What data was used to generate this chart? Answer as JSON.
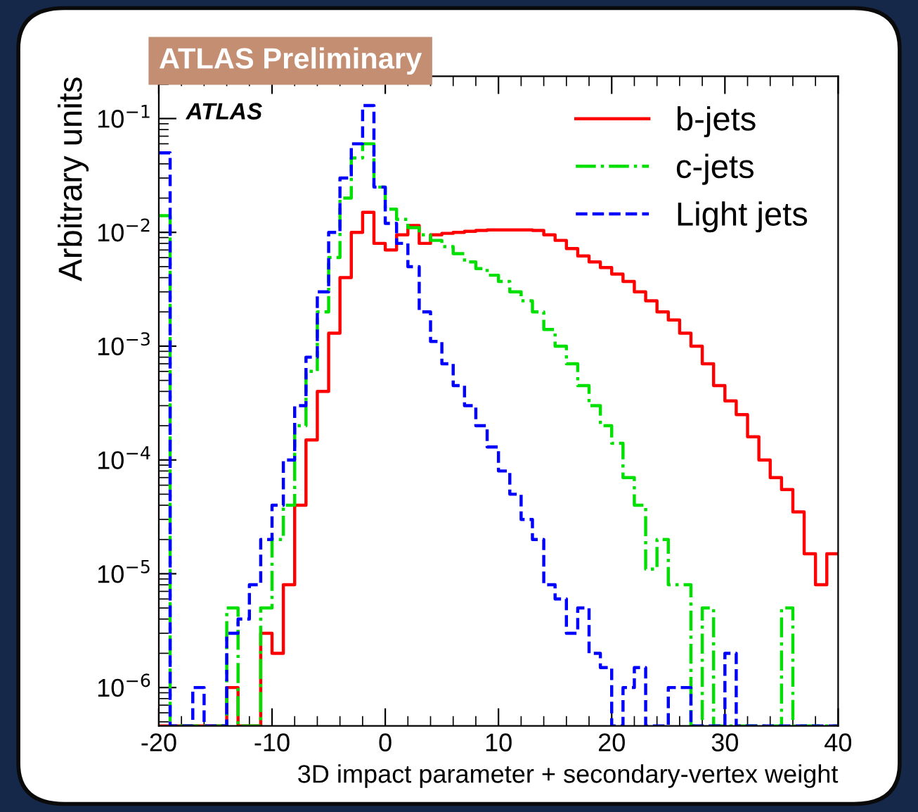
{
  "chart_data": {
    "type": "histogram",
    "title": "ATLAS Preliminary",
    "xlabel": "3D impact parameter + secondary-vertex weight",
    "ylabel": "Arbitrary units",
    "annotations": [
      "ATLAS"
    ],
    "bins": [
      -20,
      -19,
      -18,
      -17,
      -16,
      -15,
      -14,
      -13,
      -12,
      -11,
      -10,
      -9,
      -8,
      -7,
      -6,
      -5,
      -4,
      -3,
      -2,
      -1,
      0,
      1,
      2,
      3,
      4,
      5,
      6,
      7,
      8,
      9,
      10,
      11,
      12,
      13,
      14,
      15,
      16,
      17,
      18,
      19,
      20,
      21,
      22,
      23,
      24,
      25,
      26,
      27,
      28,
      29,
      30,
      31,
      32,
      33,
      34,
      35,
      36,
      37,
      38,
      39,
      40
    ],
    "series": [
      {
        "name": "b-jets",
        "color": "#ff0000",
        "line_style": "solid",
        "values": [
          null,
          null,
          null,
          null,
          null,
          null,
          1e-06,
          null,
          null,
          3e-06,
          2e-06,
          8e-06,
          4e-05,
          0.00015,
          0.0004,
          0.0013,
          0.004,
          0.01,
          0.015,
          0.008,
          0.007,
          0.0095,
          0.0115,
          0.008,
          0.0095,
          0.0098,
          0.01,
          0.0102,
          0.0104,
          0.0105,
          0.0105,
          0.0105,
          0.0105,
          0.0104,
          0.0095,
          0.0085,
          0.0072,
          0.0062,
          0.0055,
          0.0049,
          0.0043,
          0.0037,
          0.003,
          0.0025,
          0.002,
          0.0017,
          0.0013,
          0.001,
          0.0007,
          0.00045,
          0.00033,
          0.00025,
          0.00016,
          0.0001,
          7e-05,
          5.5e-05,
          3.5e-05,
          1.5e-05,
          8e-06,
          1.5e-05
        ]
      },
      {
        "name": "c-jets",
        "color": "#00e000",
        "line_style": "dashdot",
        "values": [
          0.014,
          null,
          null,
          null,
          null,
          null,
          5e-06,
          null,
          null,
          5e-06,
          2e-05,
          4e-05,
          0.0002,
          0.0006,
          0.002,
          0.006,
          0.02,
          0.045,
          0.06,
          0.025,
          0.016,
          0.013,
          0.011,
          0.0095,
          0.0085,
          0.0075,
          0.0065,
          0.0055,
          0.0048,
          0.0042,
          0.0037,
          0.003,
          0.0025,
          0.002,
          0.0014,
          0.001,
          0.0007,
          0.00045,
          0.0003,
          0.0002,
          0.00014,
          7e-05,
          4e-05,
          1.1e-05,
          2e-05,
          8e-06,
          8e-06,
          null,
          5e-06,
          null,
          null,
          null,
          null,
          null,
          null,
          5e-06,
          null,
          null,
          null,
          null
        ]
      },
      {
        "name": "Light jets",
        "color": "#0000ff",
        "line_style": "dashed",
        "values": [
          0.05,
          null,
          null,
          1e-06,
          null,
          null,
          3e-06,
          4e-06,
          8e-06,
          2e-05,
          4e-05,
          0.0001,
          0.0003,
          0.0008,
          0.003,
          0.01,
          0.03,
          0.06,
          0.13,
          0.025,
          0.012,
          0.008,
          0.005,
          0.002,
          0.0011,
          0.0007,
          0.00045,
          0.0003,
          0.0002,
          0.00013,
          8e-05,
          5e-05,
          3e-05,
          2e-05,
          8e-06,
          6e-06,
          3e-06,
          5e-06,
          2e-06,
          1.5e-06,
          null,
          1e-06,
          1.5e-06,
          null,
          null,
          1e-06,
          1e-06,
          null,
          null,
          null,
          2e-06,
          null,
          null,
          null,
          null,
          null,
          null,
          null,
          null,
          null
        ]
      }
    ],
    "log": "y",
    "xlim": [
      -20,
      40
    ],
    "ylim": [
      4.6e-07,
      0.235
    ],
    "xticks": [
      -20,
      -10,
      0,
      10,
      20,
      30,
      40
    ],
    "yticks": [
      {
        "value": 1e-06,
        "label": "10$^{−6}$"
      },
      {
        "value": 1e-05,
        "label": "10$^{−5}$"
      },
      {
        "value": 0.0001,
        "label": "10$^{−4}$"
      },
      {
        "value": 0.001,
        "label": "10$^{−3}$"
      },
      {
        "value": 0.01,
        "label": "10$^{−2}$"
      },
      {
        "value": 0.1,
        "label": "10$^{−1}$"
      }
    ],
    "legend": "top right",
    "grid": false
  }
}
